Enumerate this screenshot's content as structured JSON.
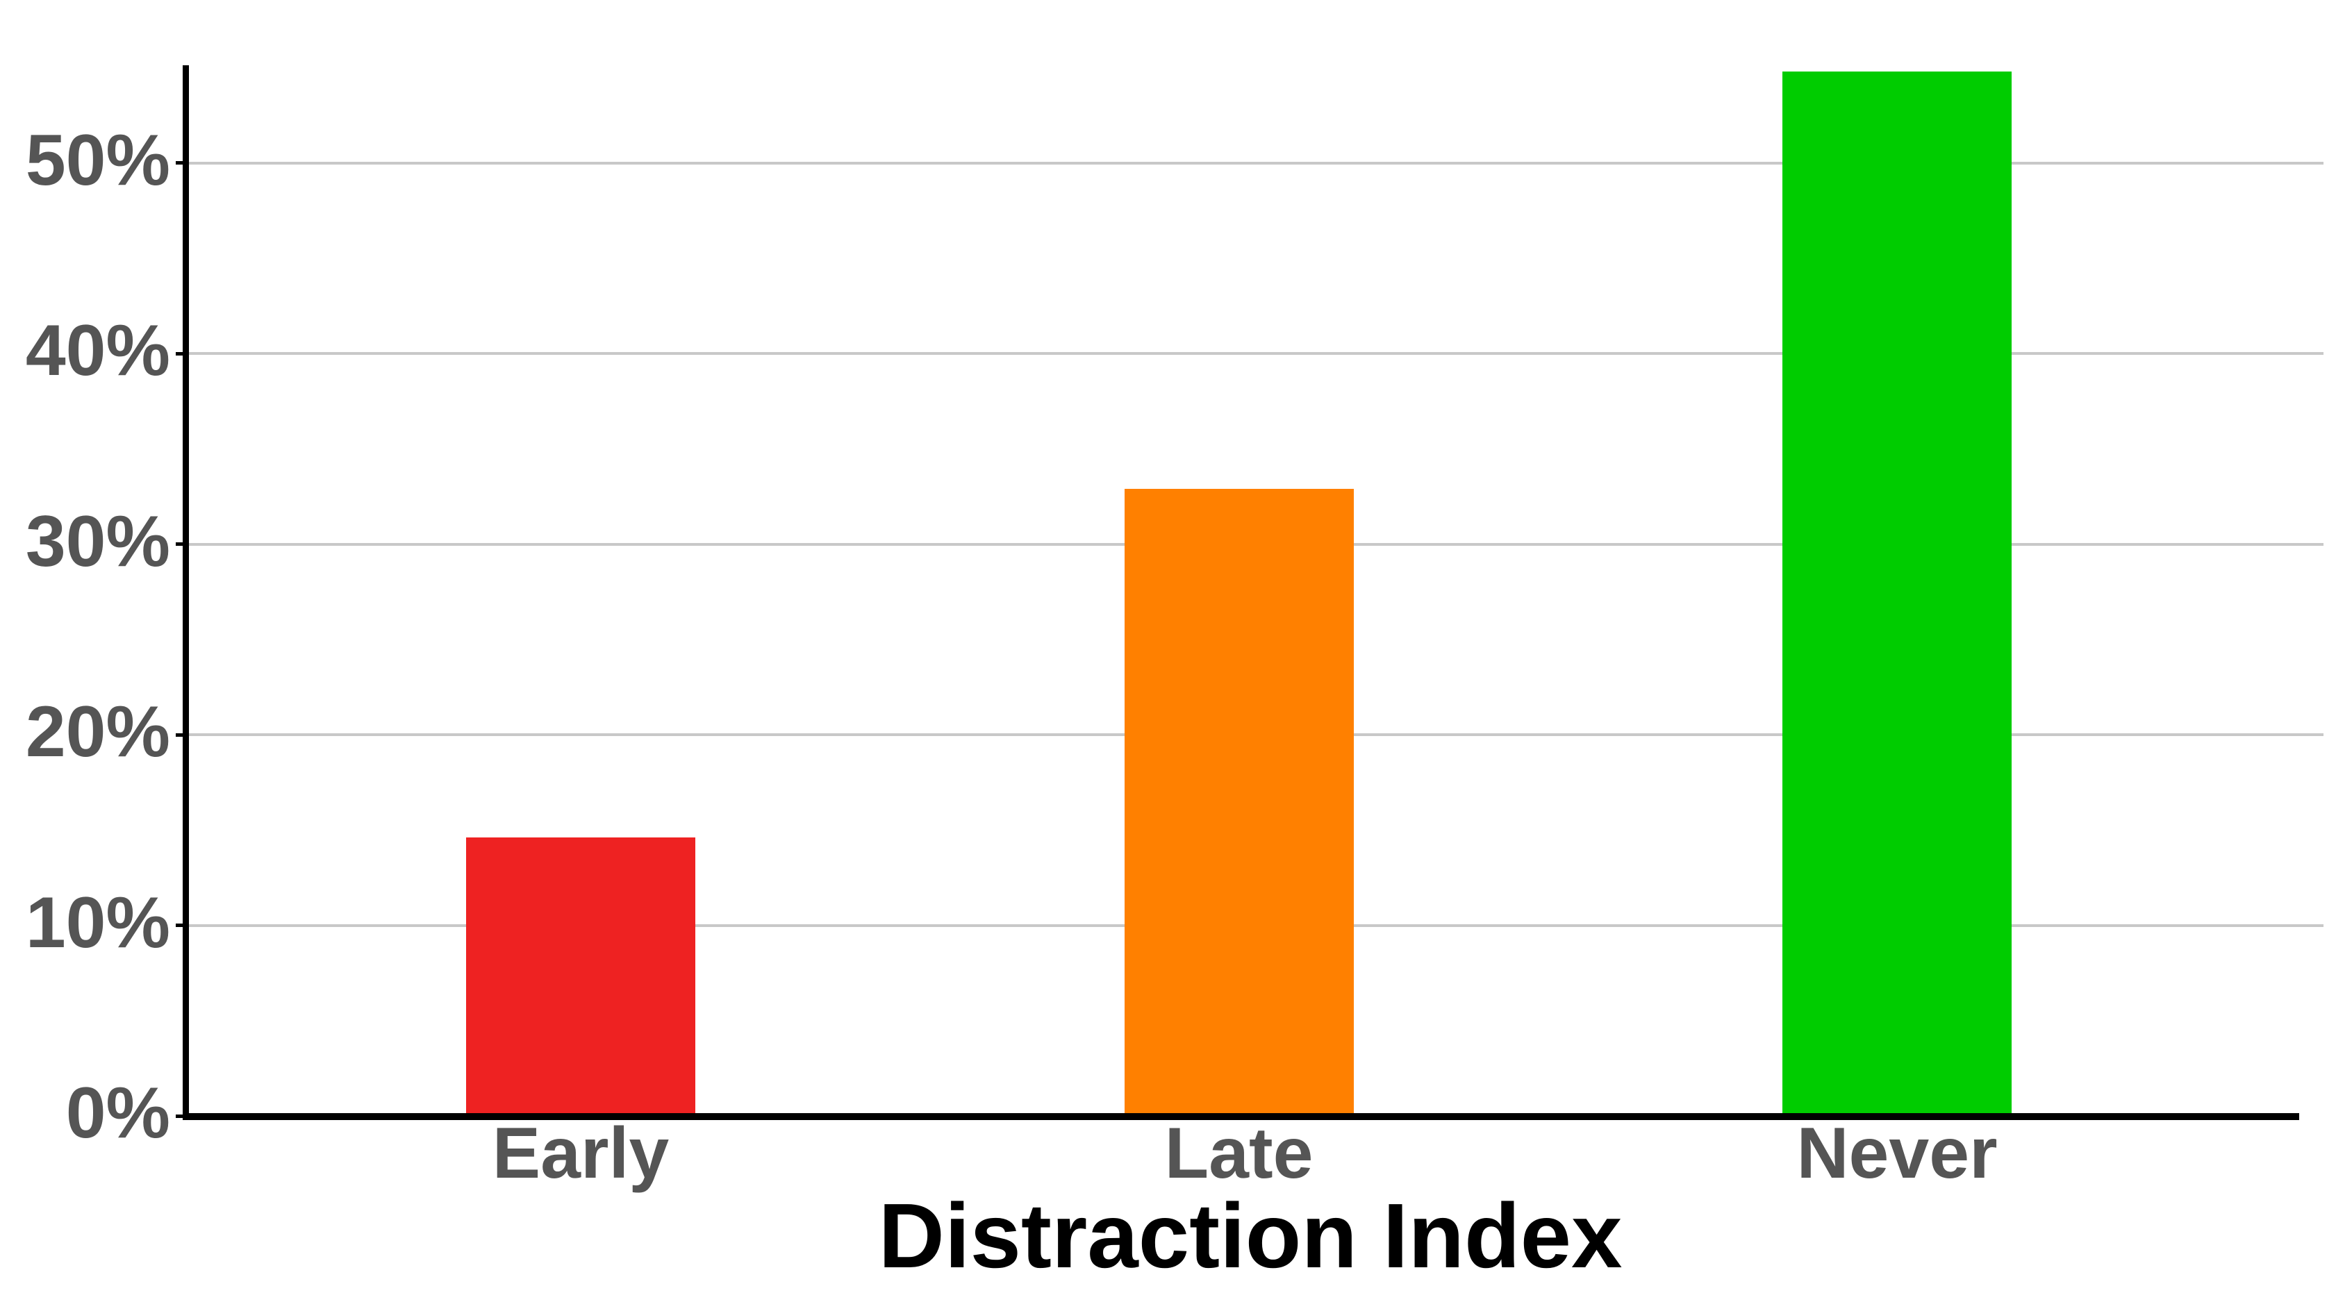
{
  "chart_data": {
    "type": "bar",
    "title": "",
    "xlabel": "Distraction Index",
    "ylabel": "",
    "categories": [
      "Early",
      "Late",
      "Never"
    ],
    "values": [
      14.6,
      32.9,
      54.8
    ],
    "bar_colors": [
      "#ee2222",
      "#ff8000",
      "#00cc00"
    ],
    "y_ticks": [
      0,
      10,
      20,
      30,
      40,
      50
    ],
    "y_tick_labels": [
      "0%",
      "10%",
      "20%",
      "30%",
      "40%",
      "50%"
    ],
    "ylim": [
      0,
      55.1
    ],
    "grid": "horizontal-only",
    "legend": "none"
  },
  "colors": {
    "background": "#ffffff",
    "axis_line": "#000000",
    "gridline": "#c8c8c8",
    "tick_label": "#555555",
    "axis_title": "#000000"
  }
}
